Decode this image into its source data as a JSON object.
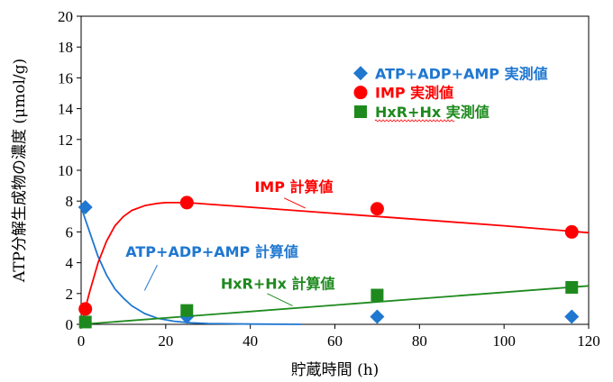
{
  "chart_data": {
    "type": "scatter",
    "title": "",
    "xlabel": "貯蔵時間 (h)",
    "ylabel": "ATP分解生成物の濃度 (μmol/g)",
    "xlim": [
      0,
      120
    ],
    "ylim": [
      0,
      20
    ],
    "x_ticks": [
      "0",
      "20",
      "40",
      "60",
      "80",
      "100",
      "120"
    ],
    "y_ticks": [
      "0",
      "2",
      "4",
      "6",
      "8",
      "10",
      "12",
      "14",
      "16",
      "18",
      "20"
    ],
    "grid": false,
    "legend_position": "top-right",
    "series": [
      {
        "name": "ATP+ADP+AMP 実測値",
        "kind": "points",
        "marker": "diamond",
        "color": "#1f77d0",
        "x": [
          1,
          25,
          70,
          116
        ],
        "y": [
          7.6,
          0.5,
          0.5,
          0.5
        ]
      },
      {
        "name": "IMP 実測値",
        "kind": "points",
        "marker": "circle",
        "color": "#ff0000",
        "x": [
          1,
          25,
          70,
          116
        ],
        "y": [
          1.0,
          7.9,
          7.5,
          6.0
        ]
      },
      {
        "name": "HxR+Hx 実測値",
        "kind": "points",
        "marker": "square",
        "color": "#1e8a1e",
        "x": [
          1,
          25,
          70,
          116
        ],
        "y": [
          0.15,
          0.9,
          1.9,
          2.4
        ]
      },
      {
        "name": "ATP+ADP+AMP 計算値",
        "kind": "curve",
        "color": "#1f77d0",
        "x": [
          0,
          2,
          4,
          6,
          8,
          10,
          12,
          15,
          18,
          22,
          26,
          30,
          40,
          52
        ],
        "y": [
          7.6,
          6.0,
          4.4,
          3.2,
          2.3,
          1.7,
          1.2,
          0.7,
          0.4,
          0.2,
          0.1,
          0.05,
          0.02,
          0.0
        ]
      },
      {
        "name": "IMP 計算値",
        "kind": "curve",
        "color": "#ff0000",
        "x": [
          0,
          2,
          4,
          6,
          8,
          10,
          12,
          15,
          18,
          20,
          25,
          40,
          60,
          80,
          100,
          120
        ],
        "y": [
          0.0,
          2.1,
          4.0,
          5.4,
          6.4,
          7.0,
          7.4,
          7.7,
          7.85,
          7.9,
          7.9,
          7.6,
          7.2,
          6.8,
          6.4,
          5.95
        ]
      },
      {
        "name": "HxR+Hx 計算値",
        "kind": "curve",
        "color": "#1e8a1e",
        "x": [
          0,
          120
        ],
        "y": [
          0.0,
          2.5
        ]
      }
    ],
    "legend": [
      {
        "label": "ATP+ADP+AMP 実測値",
        "marker": "diamond",
        "color": "#1f77d0"
      },
      {
        "label": "IMP 実測値",
        "marker": "circle",
        "color": "#ff0000"
      },
      {
        "label": "HxR+Hx 実測値",
        "marker": "square",
        "color": "#1e8a1e"
      }
    ],
    "annotations": [
      {
        "text": "IMP 計算値",
        "color": "#ff0000"
      },
      {
        "text": "ATP+ADP+AMP 計算値",
        "color": "#1f77d0"
      },
      {
        "text": "HxR+Hx 計算値",
        "color": "#1e8a1e"
      }
    ]
  }
}
